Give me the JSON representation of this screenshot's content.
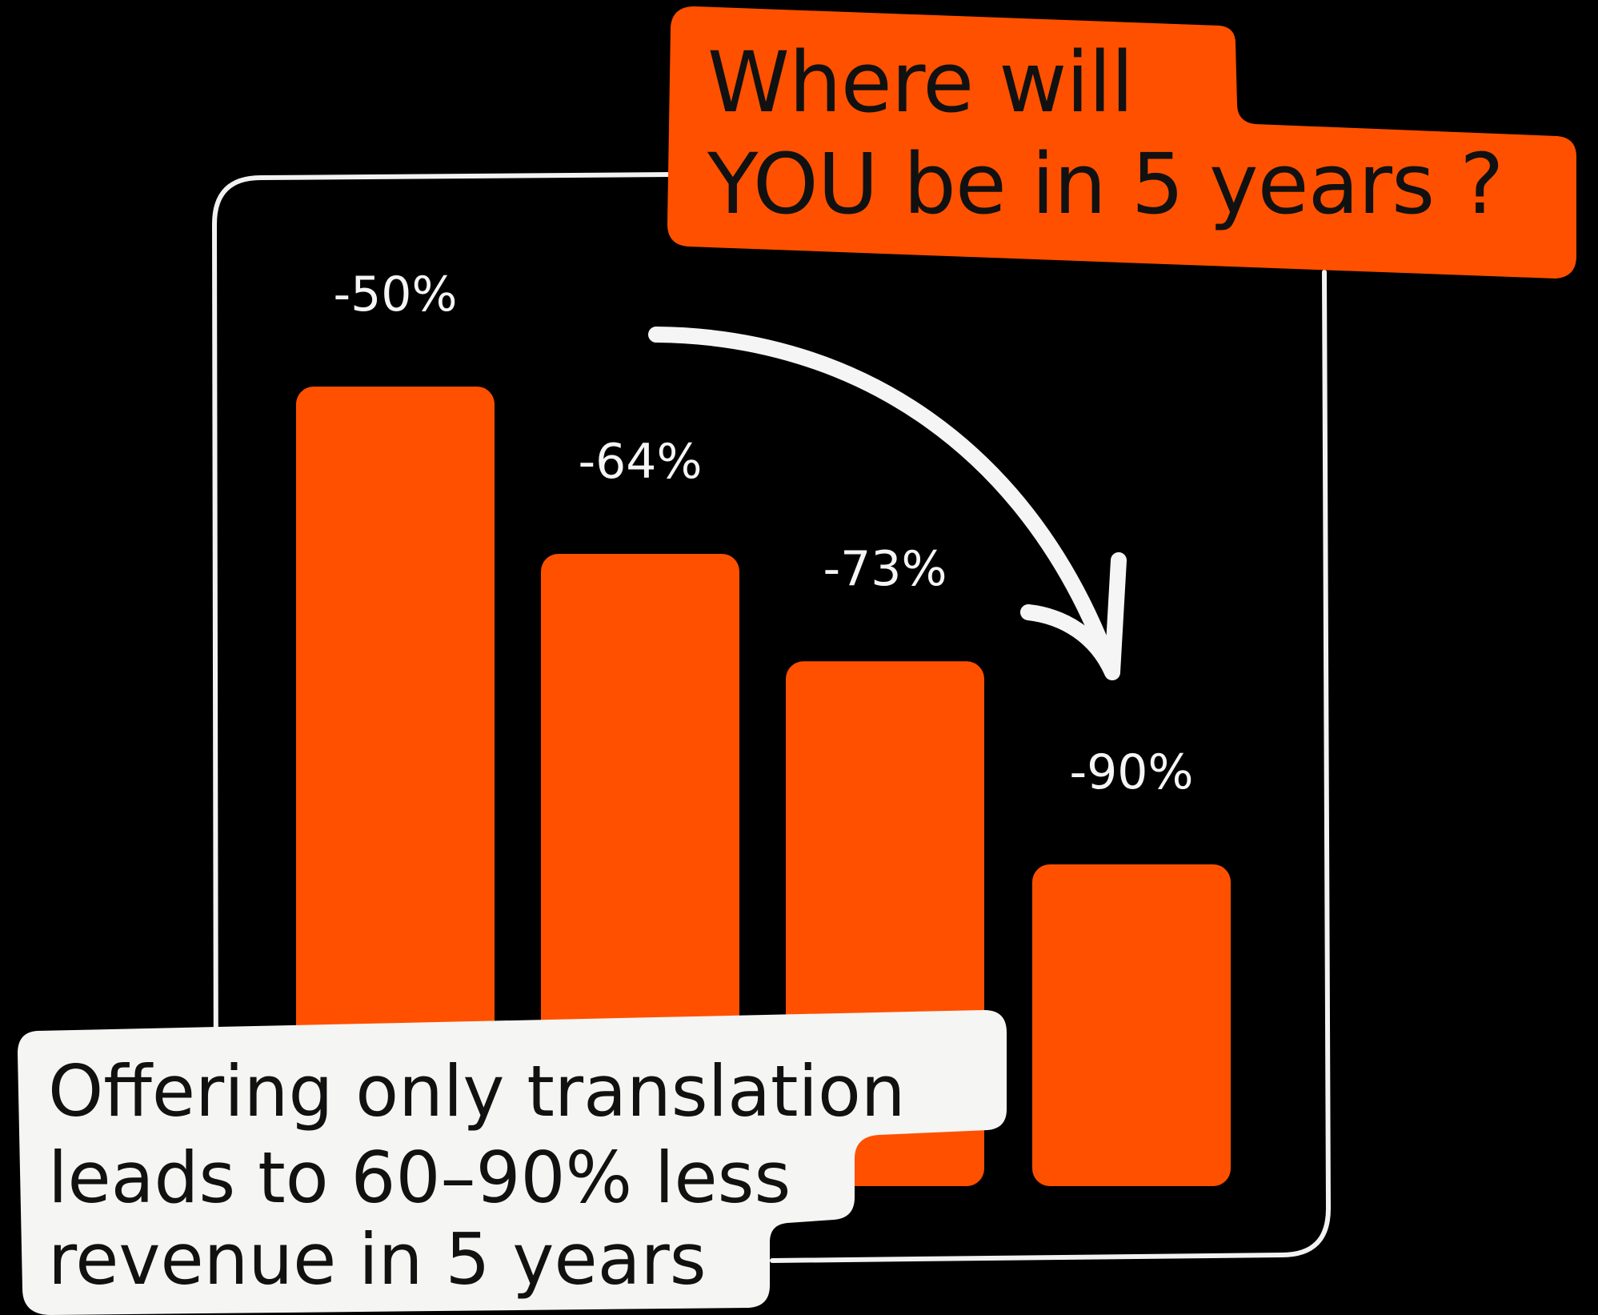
{
  "headline": {
    "lines": [
      "Where will",
      "YOU be in 5 years ?"
    ]
  },
  "caption": {
    "lines": [
      "Offering only translation",
      "leads to 60–90% less",
      "revenue in 5 years"
    ]
  },
  "colors": {
    "background": "#000000",
    "bar": "#FF5000",
    "frame": "#F2F2F2",
    "callout_light": "#F5F5F3",
    "text_dark": "#111111",
    "text_light": "#F5F5F5"
  },
  "chart_data": {
    "type": "bar",
    "categories": [
      "",
      "",
      "",
      ""
    ],
    "values": [
      -50,
      -64,
      -73,
      -90
    ],
    "data_labels": [
      "-50%",
      "-64%",
      "-73%",
      "-90%"
    ],
    "title": "",
    "xlabel": "",
    "ylabel": "",
    "ylim": [
      -100,
      0
    ],
    "grid": false,
    "legend": "none",
    "annotations": [
      "curved arrow pointing down-right toward the last bar"
    ]
  }
}
